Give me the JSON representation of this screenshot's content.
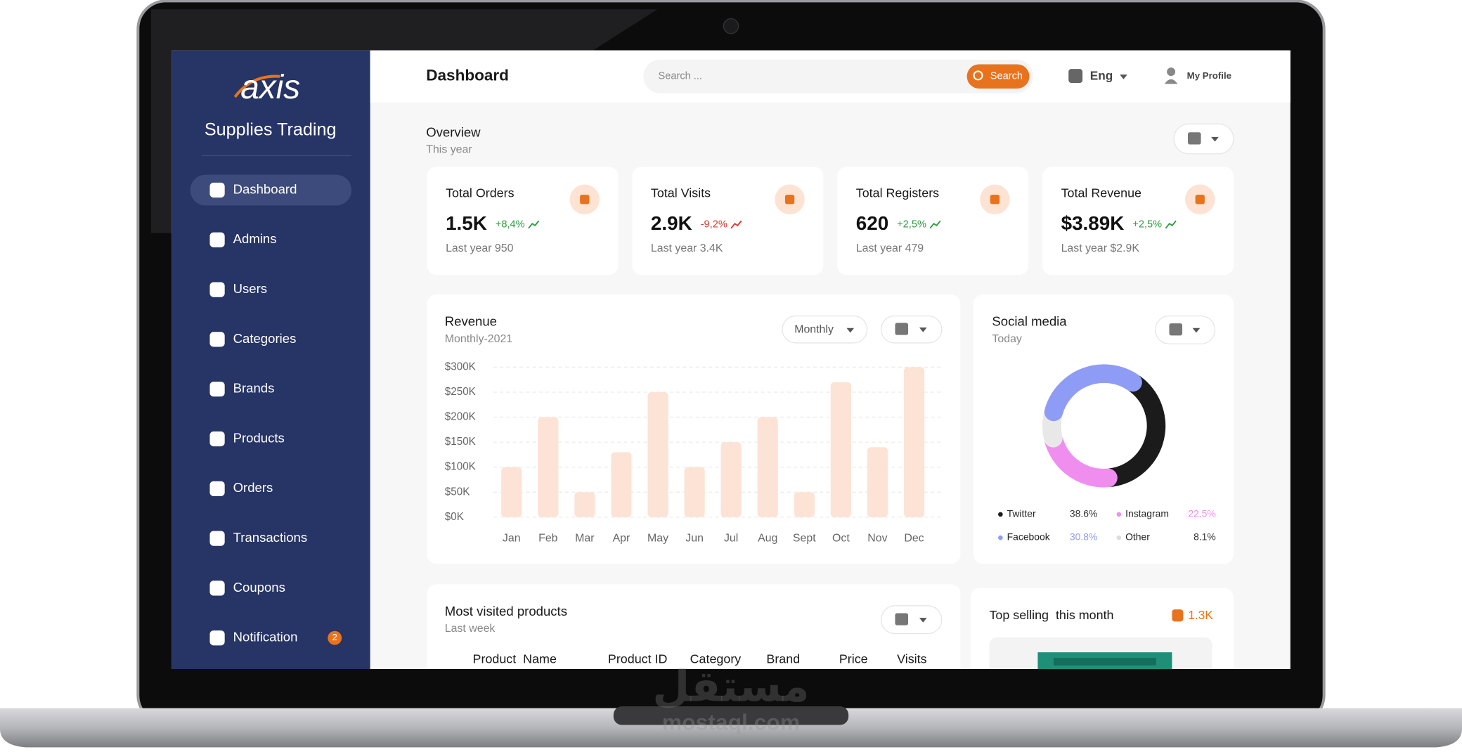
{
  "sidebar": {
    "logo": "axis",
    "subtitle": "Supplies Trading",
    "menu": [
      {
        "label": "Dashboard",
        "active": true
      },
      {
        "label": "Admins"
      },
      {
        "label": "Users"
      },
      {
        "label": "Categories"
      },
      {
        "label": "Brands"
      },
      {
        "label": "Products"
      },
      {
        "label": "Orders"
      },
      {
        "label": "Transactions"
      },
      {
        "label": "Coupons"
      },
      {
        "label": "Notification",
        "badge": "2"
      }
    ]
  },
  "header": {
    "title": "Dashboard",
    "search_placeholder": "Search ...",
    "search_button": "Search",
    "language": "Eng",
    "profile": "My Profile"
  },
  "overview": {
    "title": "Overview",
    "period": "This year",
    "cards": [
      {
        "title": "Total Orders",
        "value": "1.5K",
        "change": "+8,4%",
        "change_color": "#2e9c3f",
        "last_year": "Last year 950"
      },
      {
        "title": "Total Visits",
        "value": "2.9K",
        "change": "-9,2%",
        "change_color": "#d63a2f",
        "last_year": "Last year 3.4K"
      },
      {
        "title": "Total Registers",
        "value": "620",
        "change": "+2,5%",
        "change_color": "#2e9c3f",
        "last_year": "Last year 479"
      },
      {
        "title": "Total Revenue",
        "value": "$3.89K",
        "change": "+2,5%",
        "change_color": "#2e9c3f",
        "last_year": "Last year $2.9K"
      }
    ]
  },
  "chart_data": [
    {
      "type": "bar",
      "title": "Revenue",
      "subtitle": "Monthly-2021",
      "period_selector": "Monthly",
      "categories": [
        "Jan",
        "Feb",
        "Mar",
        "Apr",
        "May",
        "Jun",
        "Jul",
        "Aug",
        "Sept",
        "Oct",
        "Nov",
        "Dec"
      ],
      "values": [
        100000,
        200000,
        50000,
        130000,
        250000,
        100000,
        150000,
        200000,
        50000,
        270000,
        140000,
        300000
      ],
      "color": "#fde3d5",
      "ylim": [
        0,
        300000
      ],
      "yticks": [
        {
          "value": 0,
          "label": "$0K"
        },
        {
          "value": 50000,
          "label": "$50K"
        },
        {
          "value": 100000,
          "label": "$100K"
        },
        {
          "value": 150000,
          "label": "$150K"
        },
        {
          "value": 200000,
          "label": "$200K"
        },
        {
          "value": 250000,
          "label": "$250K"
        },
        {
          "value": 300000,
          "label": "$300K"
        }
      ],
      "grid": true
    },
    {
      "type": "pie",
      "title": "Social media",
      "subtitle": "Today",
      "categories": [
        "Twitter",
        "Instagram",
        "Other",
        "Facebook"
      ],
      "values": [
        38.6,
        22.5,
        8.1,
        30.8
      ],
      "value_labels": [
        "38.6%",
        "22.5%",
        "8.1%",
        "30.8%"
      ],
      "colors": [
        "#1b1b1b",
        "#f08ef0",
        "#e8e8e8",
        "#8f9cf5"
      ],
      "value_label_colors": [
        "#333333",
        "#f08ef0",
        "#333333",
        "#8f9cf5"
      ]
    }
  ],
  "most_visited": {
    "title": "Most visited products",
    "period": "Last week",
    "columns": [
      "Product  Name",
      "Product ID",
      "Category",
      "Brand",
      "Price",
      "Visits"
    ]
  },
  "top_selling": {
    "title": "Top selling  this month",
    "value": "1.3K"
  },
  "watermark": {
    "arabic": "مستقل",
    "latin": "mostaql.com"
  }
}
